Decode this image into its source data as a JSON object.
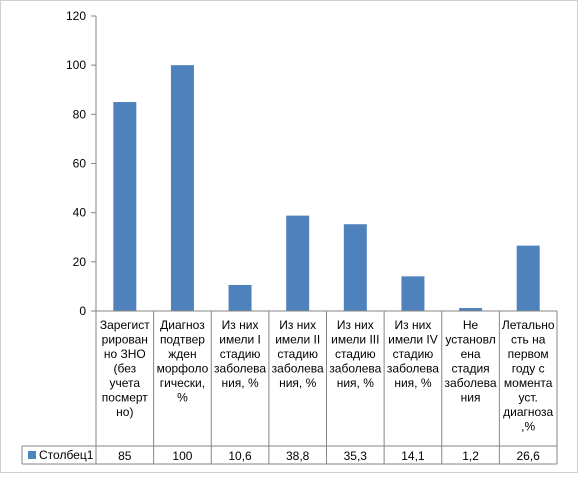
{
  "chart_data": {
    "type": "bar",
    "categories": [
      "Зарегист рирован но ЗНО (без учета посмерт но)",
      "Диагноз подтвер жден морфоло гически, %",
      "Из них имели I стадию заболева ния, %",
      "Из них имели II стадию заболева ния, %",
      "Из них имели III стадию заболева ния, %",
      "Из них имели IV стадию заболева ния, %",
      "Не установл ена стадия заболева ния",
      "Летальность на первом году с момента уст. диагноза ,%"
    ],
    "category_lines": [
      [
        "Зарегист",
        "рирован",
        "но ЗНО",
        "(без",
        "учета",
        "посмерт",
        "но)"
      ],
      [
        "Диагноз",
        "подтвер",
        "жден",
        "морфоло",
        "гически,",
        "%"
      ],
      [
        "Из них",
        "имели I",
        "стадию",
        "заболева",
        "ния, %"
      ],
      [
        "Из них",
        "имели II",
        "стадию",
        "заболева",
        "ния, %"
      ],
      [
        "Из них",
        "имели III",
        "стадию",
        "заболева",
        "ния, %"
      ],
      [
        "Из них",
        "имели IV",
        "стадию",
        "заболева",
        "ния, %"
      ],
      [
        "Не",
        "установл",
        "ена",
        "стадия",
        "заболева",
        "ния"
      ],
      [
        "Летально",
        "сть на",
        "первом",
        "году с",
        "момента",
        "уст.",
        "диагноза",
        ",%"
      ]
    ],
    "series": [
      {
        "name": "Столбец1",
        "values": [
          85,
          100,
          10.6,
          38.8,
          35.3,
          14.1,
          1.2,
          26.6
        ],
        "value_labels": [
          "85",
          "100",
          "10,6",
          "38,8",
          "35,3",
          "14,1",
          "1,2",
          "26,6"
        ],
        "color": "#4F81BD"
      }
    ],
    "ylim": [
      0,
      120
    ],
    "yticks": [
      "0",
      "20",
      "40",
      "60",
      "80",
      "100",
      "120"
    ],
    "grid": false,
    "legend": "data-table-bottom",
    "data_table": true
  }
}
